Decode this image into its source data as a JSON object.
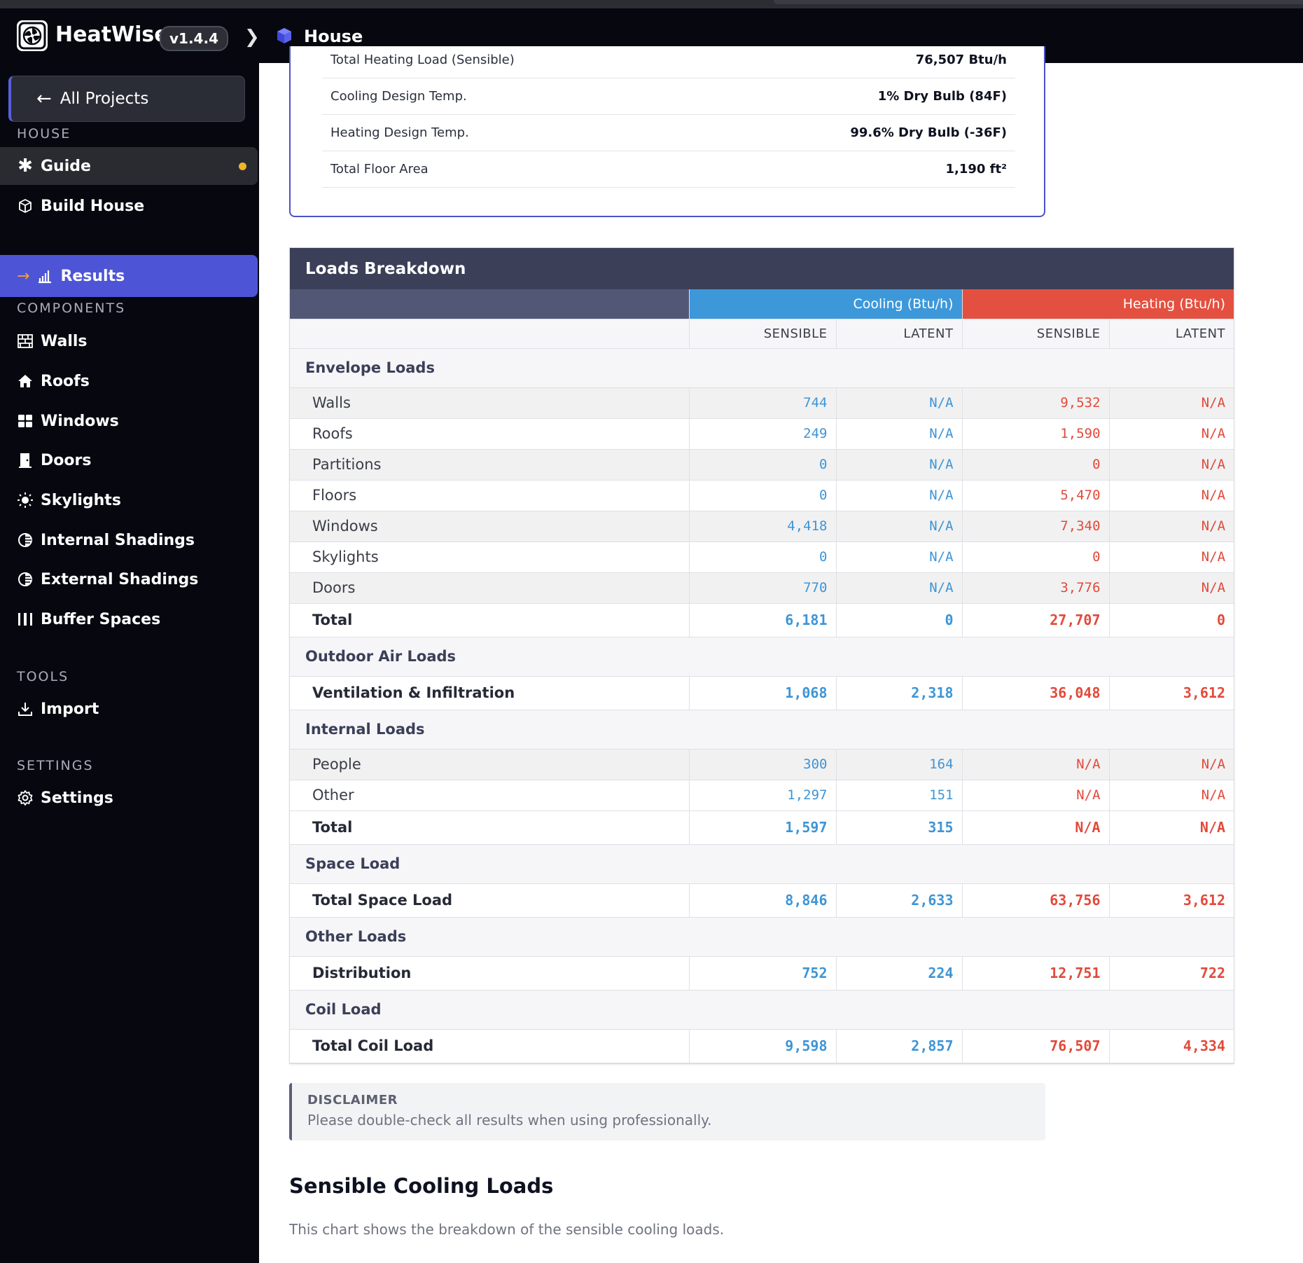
{
  "app": {
    "name": "HeatWise",
    "version": "v1.4.4"
  },
  "breadcrumb": {
    "current": "House"
  },
  "sidebar": {
    "back_label": "All Projects",
    "sections": {
      "house": "HOUSE",
      "components": "COMPONENTS",
      "tools": "TOOLS",
      "settings": "SETTINGS"
    },
    "house_items": [
      {
        "label": "Guide",
        "icon": "asterisk-icon"
      },
      {
        "label": "Build House",
        "icon": "cube-icon"
      },
      {
        "label": "Results",
        "icon": "bar-chart-icon"
      }
    ],
    "component_items": [
      {
        "label": "Walls",
        "icon": "brick-wall-icon"
      },
      {
        "label": "Roofs",
        "icon": "house-icon"
      },
      {
        "label": "Windows",
        "icon": "window-grid-icon"
      },
      {
        "label": "Doors",
        "icon": "door-icon"
      },
      {
        "label": "Skylights",
        "icon": "sun-icon"
      },
      {
        "label": "Internal Shadings",
        "icon": "shading-icon"
      },
      {
        "label": "External Shadings",
        "icon": "shading-icon"
      },
      {
        "label": "Buffer Spaces",
        "icon": "buffer-icon"
      }
    ],
    "tool_items": [
      {
        "label": "Import",
        "icon": "download-icon"
      }
    ],
    "settings_items": [
      {
        "label": "Settings",
        "icon": "gear-icon"
      }
    ]
  },
  "summary": {
    "rows": [
      {
        "label": "Total Heating Load (Sensible)",
        "value": "76,507 Btu/h"
      },
      {
        "label": "Cooling Design Temp.",
        "value": "1% Dry Bulb (84F)"
      },
      {
        "label": "Heating Design Temp.",
        "value": "99.6% Dry Bulb (-36F)"
      },
      {
        "label": "Total Floor Area",
        "value": "1,190 ft²"
      }
    ]
  },
  "loads": {
    "title": "Loads Breakdown",
    "cooling_header": "Cooling (Btu/h)",
    "heating_header": "Heating (Btu/h)",
    "sub_headers": [
      "SENSIBLE",
      "LATENT",
      "SENSIBLE",
      "LATENT"
    ],
    "sections": [
      {
        "title": "Envelope Loads",
        "rows": [
          {
            "name": "Walls",
            "v": [
              "744",
              "N/A",
              "9,532",
              "N/A"
            ]
          },
          {
            "name": "Roofs",
            "v": [
              "249",
              "N/A",
              "1,590",
              "N/A"
            ]
          },
          {
            "name": "Partitions",
            "v": [
              "0",
              "N/A",
              "0",
              "N/A"
            ]
          },
          {
            "name": "Floors",
            "v": [
              "0",
              "N/A",
              "5,470",
              "N/A"
            ]
          },
          {
            "name": "Windows",
            "v": [
              "4,418",
              "N/A",
              "7,340",
              "N/A"
            ]
          },
          {
            "name": "Skylights",
            "v": [
              "0",
              "N/A",
              "0",
              "N/A"
            ]
          },
          {
            "name": "Doors",
            "v": [
              "770",
              "N/A",
              "3,776",
              "N/A"
            ]
          }
        ],
        "total": {
          "name": "Total",
          "v": [
            "6,181",
            "0",
            "27,707",
            "0"
          ]
        }
      },
      {
        "title": "Outdoor Air Loads",
        "rows": [],
        "total": {
          "name": "Ventilation & Infiltration",
          "v": [
            "1,068",
            "2,318",
            "36,048",
            "3,612"
          ]
        }
      },
      {
        "title": "Internal Loads",
        "rows": [
          {
            "name": "People",
            "v": [
              "300",
              "164",
              "N/A",
              "N/A"
            ]
          },
          {
            "name": "Other",
            "v": [
              "1,297",
              "151",
              "N/A",
              "N/A"
            ]
          }
        ],
        "total": {
          "name": "Total",
          "v": [
            "1,597",
            "315",
            "N/A",
            "N/A"
          ]
        }
      },
      {
        "title": "Space Load",
        "rows": [],
        "total": {
          "name": "Total Space Load",
          "v": [
            "8,846",
            "2,633",
            "63,756",
            "3,612"
          ]
        }
      },
      {
        "title": "Other Loads",
        "rows": [],
        "total": {
          "name": "Distribution",
          "v": [
            "752",
            "224",
            "12,751",
            "722"
          ]
        }
      },
      {
        "title": "Coil Load",
        "rows": [],
        "total": {
          "name": "Total Coil Load",
          "v": [
            "9,598",
            "2,857",
            "76,507",
            "4,334"
          ]
        }
      }
    ]
  },
  "disclaimer": {
    "title": "DISCLAIMER",
    "body": "Please double-check all results when using professionally."
  },
  "chart_section": {
    "title": "Sensible Cooling Loads",
    "description": "This chart shows the breakdown of the sensible cooling loads."
  },
  "colors": {
    "cooling": "#3d98da",
    "heating": "#e45040",
    "accent": "#4d55d6",
    "guide_dot": "#f0b429"
  }
}
